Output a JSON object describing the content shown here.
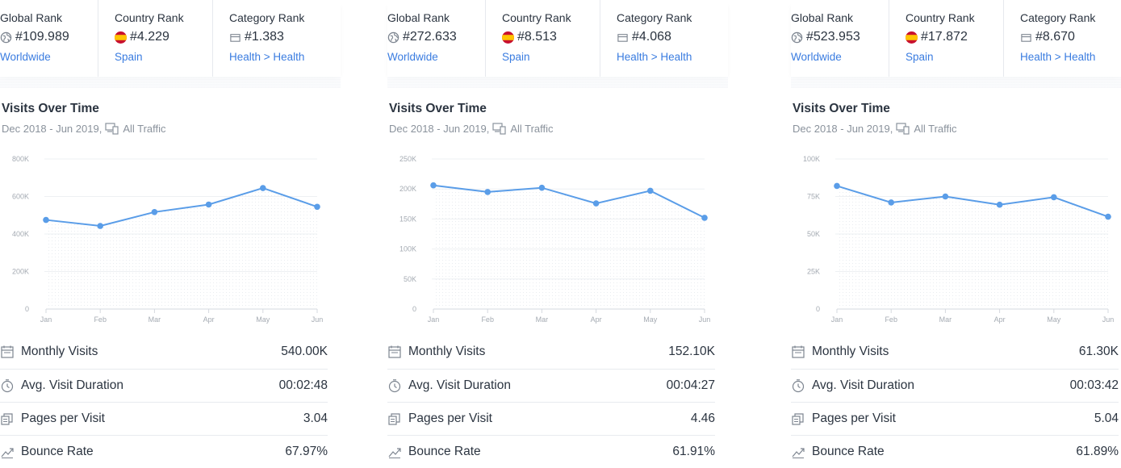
{
  "panels": [
    {
      "ranks": {
        "global": {
          "label": "Global Rank",
          "value": "#109.989",
          "link": "Worldwide"
        },
        "country": {
          "label": "Country Rank",
          "value": "#4.229",
          "link": "Spain"
        },
        "category": {
          "label": "Category Rank",
          "value": "#1.383",
          "link": "Health > Health"
        }
      },
      "title": "Visits Over Time",
      "subtitle": "Dec 2018 - Jun 2019,",
      "traffic": "All Traffic",
      "metrics": [
        {
          "label": "Monthly Visits",
          "value": "540.00K",
          "icon": "calendar-icon"
        },
        {
          "label": "Avg. Visit Duration",
          "value": "00:02:48",
          "icon": "timer-icon"
        },
        {
          "label": "Pages per Visit",
          "value": "3.04",
          "icon": "pages-icon"
        },
        {
          "label": "Bounce Rate",
          "value": "67.97%",
          "icon": "trend-icon"
        }
      ]
    },
    {
      "ranks": {
        "global": {
          "label": "Global Rank",
          "value": "#272.633",
          "link": "Worldwide"
        },
        "country": {
          "label": "Country Rank",
          "value": "#8.513",
          "link": "Spain"
        },
        "category": {
          "label": "Category Rank",
          "value": "#4.068",
          "link": "Health > Health"
        }
      },
      "title": "Visits Over Time",
      "subtitle": "Dec 2018 - Jun 2019,",
      "traffic": "All Traffic",
      "metrics": [
        {
          "label": "Monthly Visits",
          "value": "152.10K",
          "icon": "calendar-icon"
        },
        {
          "label": "Avg. Visit Duration",
          "value": "00:04:27",
          "icon": "timer-icon"
        },
        {
          "label": "Pages per Visit",
          "value": "4.46",
          "icon": "pages-icon"
        },
        {
          "label": "Bounce Rate",
          "value": "61.91%",
          "icon": "trend-icon"
        }
      ]
    },
    {
      "ranks": {
        "global": {
          "label": "Global Rank",
          "value": "#523.953",
          "link": "Worldwide"
        },
        "country": {
          "label": "Country Rank",
          "value": "#17.872",
          "link": "Spain"
        },
        "category": {
          "label": "Category Rank",
          "value": "#8.670",
          "link": "Health > Health"
        }
      },
      "title": "Visits Over Time",
      "subtitle": "Dec 2018 - Jun 2019,",
      "traffic": "All Traffic",
      "metrics": [
        {
          "label": "Monthly Visits",
          "value": "61.30K",
          "icon": "calendar-icon"
        },
        {
          "label": "Avg. Visit Duration",
          "value": "00:03:42",
          "icon": "timer-icon"
        },
        {
          "label": "Pages per Visit",
          "value": "5.04",
          "icon": "pages-icon"
        },
        {
          "label": "Bounce Rate",
          "value": "61.89%",
          "icon": "trend-icon"
        }
      ]
    }
  ],
  "colors": {
    "line": "#5a9de8",
    "link": "#3a7ce0",
    "grid": "#eef0f3",
    "axis_text": "#a5abb3",
    "flag_red": "#c8102e",
    "flag_yellow": "#ffc400"
  },
  "chart_data": [
    {
      "type": "line",
      "title": "Visits Over Time",
      "categories": [
        "Jan",
        "Feb",
        "Mar",
        "Apr",
        "May",
        "Jun"
      ],
      "yticks": [
        "0",
        "200K",
        "400K",
        "600K",
        "800K"
      ],
      "ylim": [
        0,
        800000
      ],
      "series": [
        {
          "values": [
            475000,
            443000,
            517000,
            557000,
            645000,
            545000
          ]
        }
      ],
      "grid": true
    },
    {
      "type": "line",
      "title": "Visits Over Time",
      "categories": [
        "Jan",
        "Feb",
        "Mar",
        "Apr",
        "May",
        "Jun"
      ],
      "yticks": [
        "0",
        "50K",
        "100K",
        "150K",
        "200K",
        "250K"
      ],
      "ylim": [
        0,
        250000
      ],
      "series": [
        {
          "values": [
            206000,
            195000,
            202000,
            176000,
            197000,
            152000
          ]
        }
      ],
      "grid": true
    },
    {
      "type": "line",
      "title": "Visits Over Time",
      "categories": [
        "Jan",
        "Feb",
        "Mar",
        "Apr",
        "May",
        "Jun"
      ],
      "yticks": [
        "0",
        "25K",
        "50K",
        "75K",
        "100K"
      ],
      "ylim": [
        0,
        100000
      ],
      "series": [
        {
          "values": [
            82000,
            71000,
            75000,
            69500,
            74500,
            61500
          ]
        }
      ],
      "grid": true
    }
  ]
}
